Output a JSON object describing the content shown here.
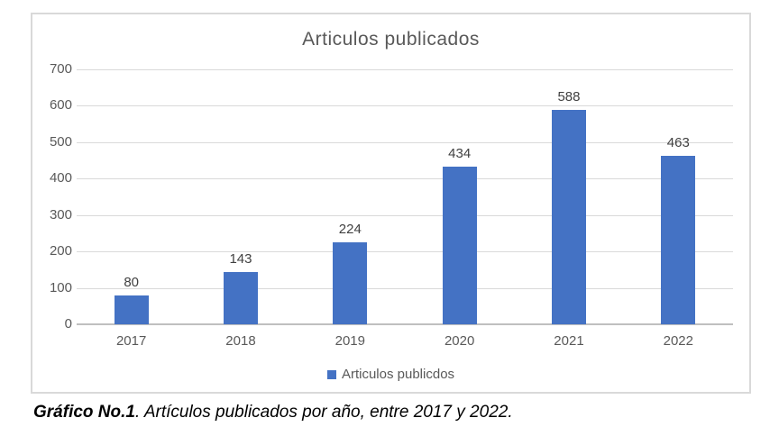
{
  "chart_data": {
    "type": "bar",
    "title": "Articulos publicados",
    "categories": [
      "2017",
      "2018",
      "2019",
      "2020",
      "2021",
      "2022"
    ],
    "values": [
      80,
      143,
      224,
      434,
      588,
      463
    ],
    "series": [
      {
        "name": "Articulos publicdos",
        "values": [
          80,
          143,
          224,
          434,
          588,
          463
        ]
      }
    ],
    "legend_label": "Articulos publicdos",
    "legend_position": "bottom",
    "y_ticks": [
      0,
      100,
      200,
      300,
      400,
      500,
      600,
      700
    ],
    "ylim": [
      0,
      700
    ],
    "xlabel": "",
    "ylabel": "",
    "grid": true,
    "colors": {
      "bar": "#4472C4",
      "title": "#595959",
      "axis_labels": "#595959",
      "data_labels": "#404040",
      "gridline": "#D9D9D9",
      "axis_line": "#BFBFBF",
      "chart_border": "#D9D9D9"
    }
  },
  "caption": {
    "label_bold": "Gráfico No.1",
    "text_rest": ". Artículos publicados por año, entre 2017 y 2022."
  }
}
